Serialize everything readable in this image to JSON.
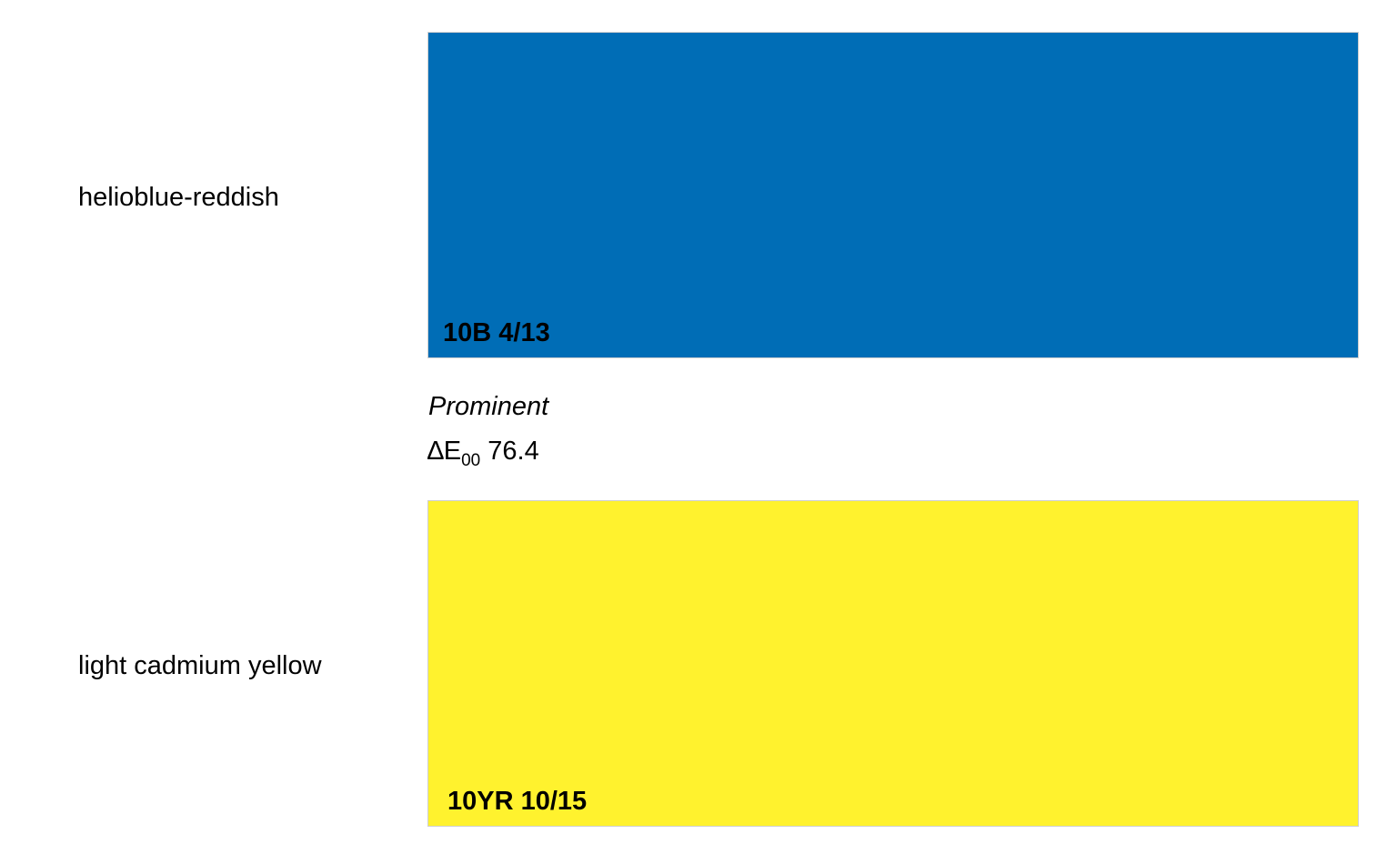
{
  "colors": [
    {
      "name": "helioblue-reddish",
      "munsell": "10B 4/13",
      "hex": "#006db6"
    },
    {
      "name": "light cadmium yellow",
      "munsell": "10YR 10/15",
      "hex": "#fff22e"
    }
  ],
  "comparison": {
    "verdict": "Prominent",
    "delta_symbol": "∆E",
    "delta_subscript": "00",
    "delta_value": "76.4"
  },
  "border_color": "#cfcfcf"
}
